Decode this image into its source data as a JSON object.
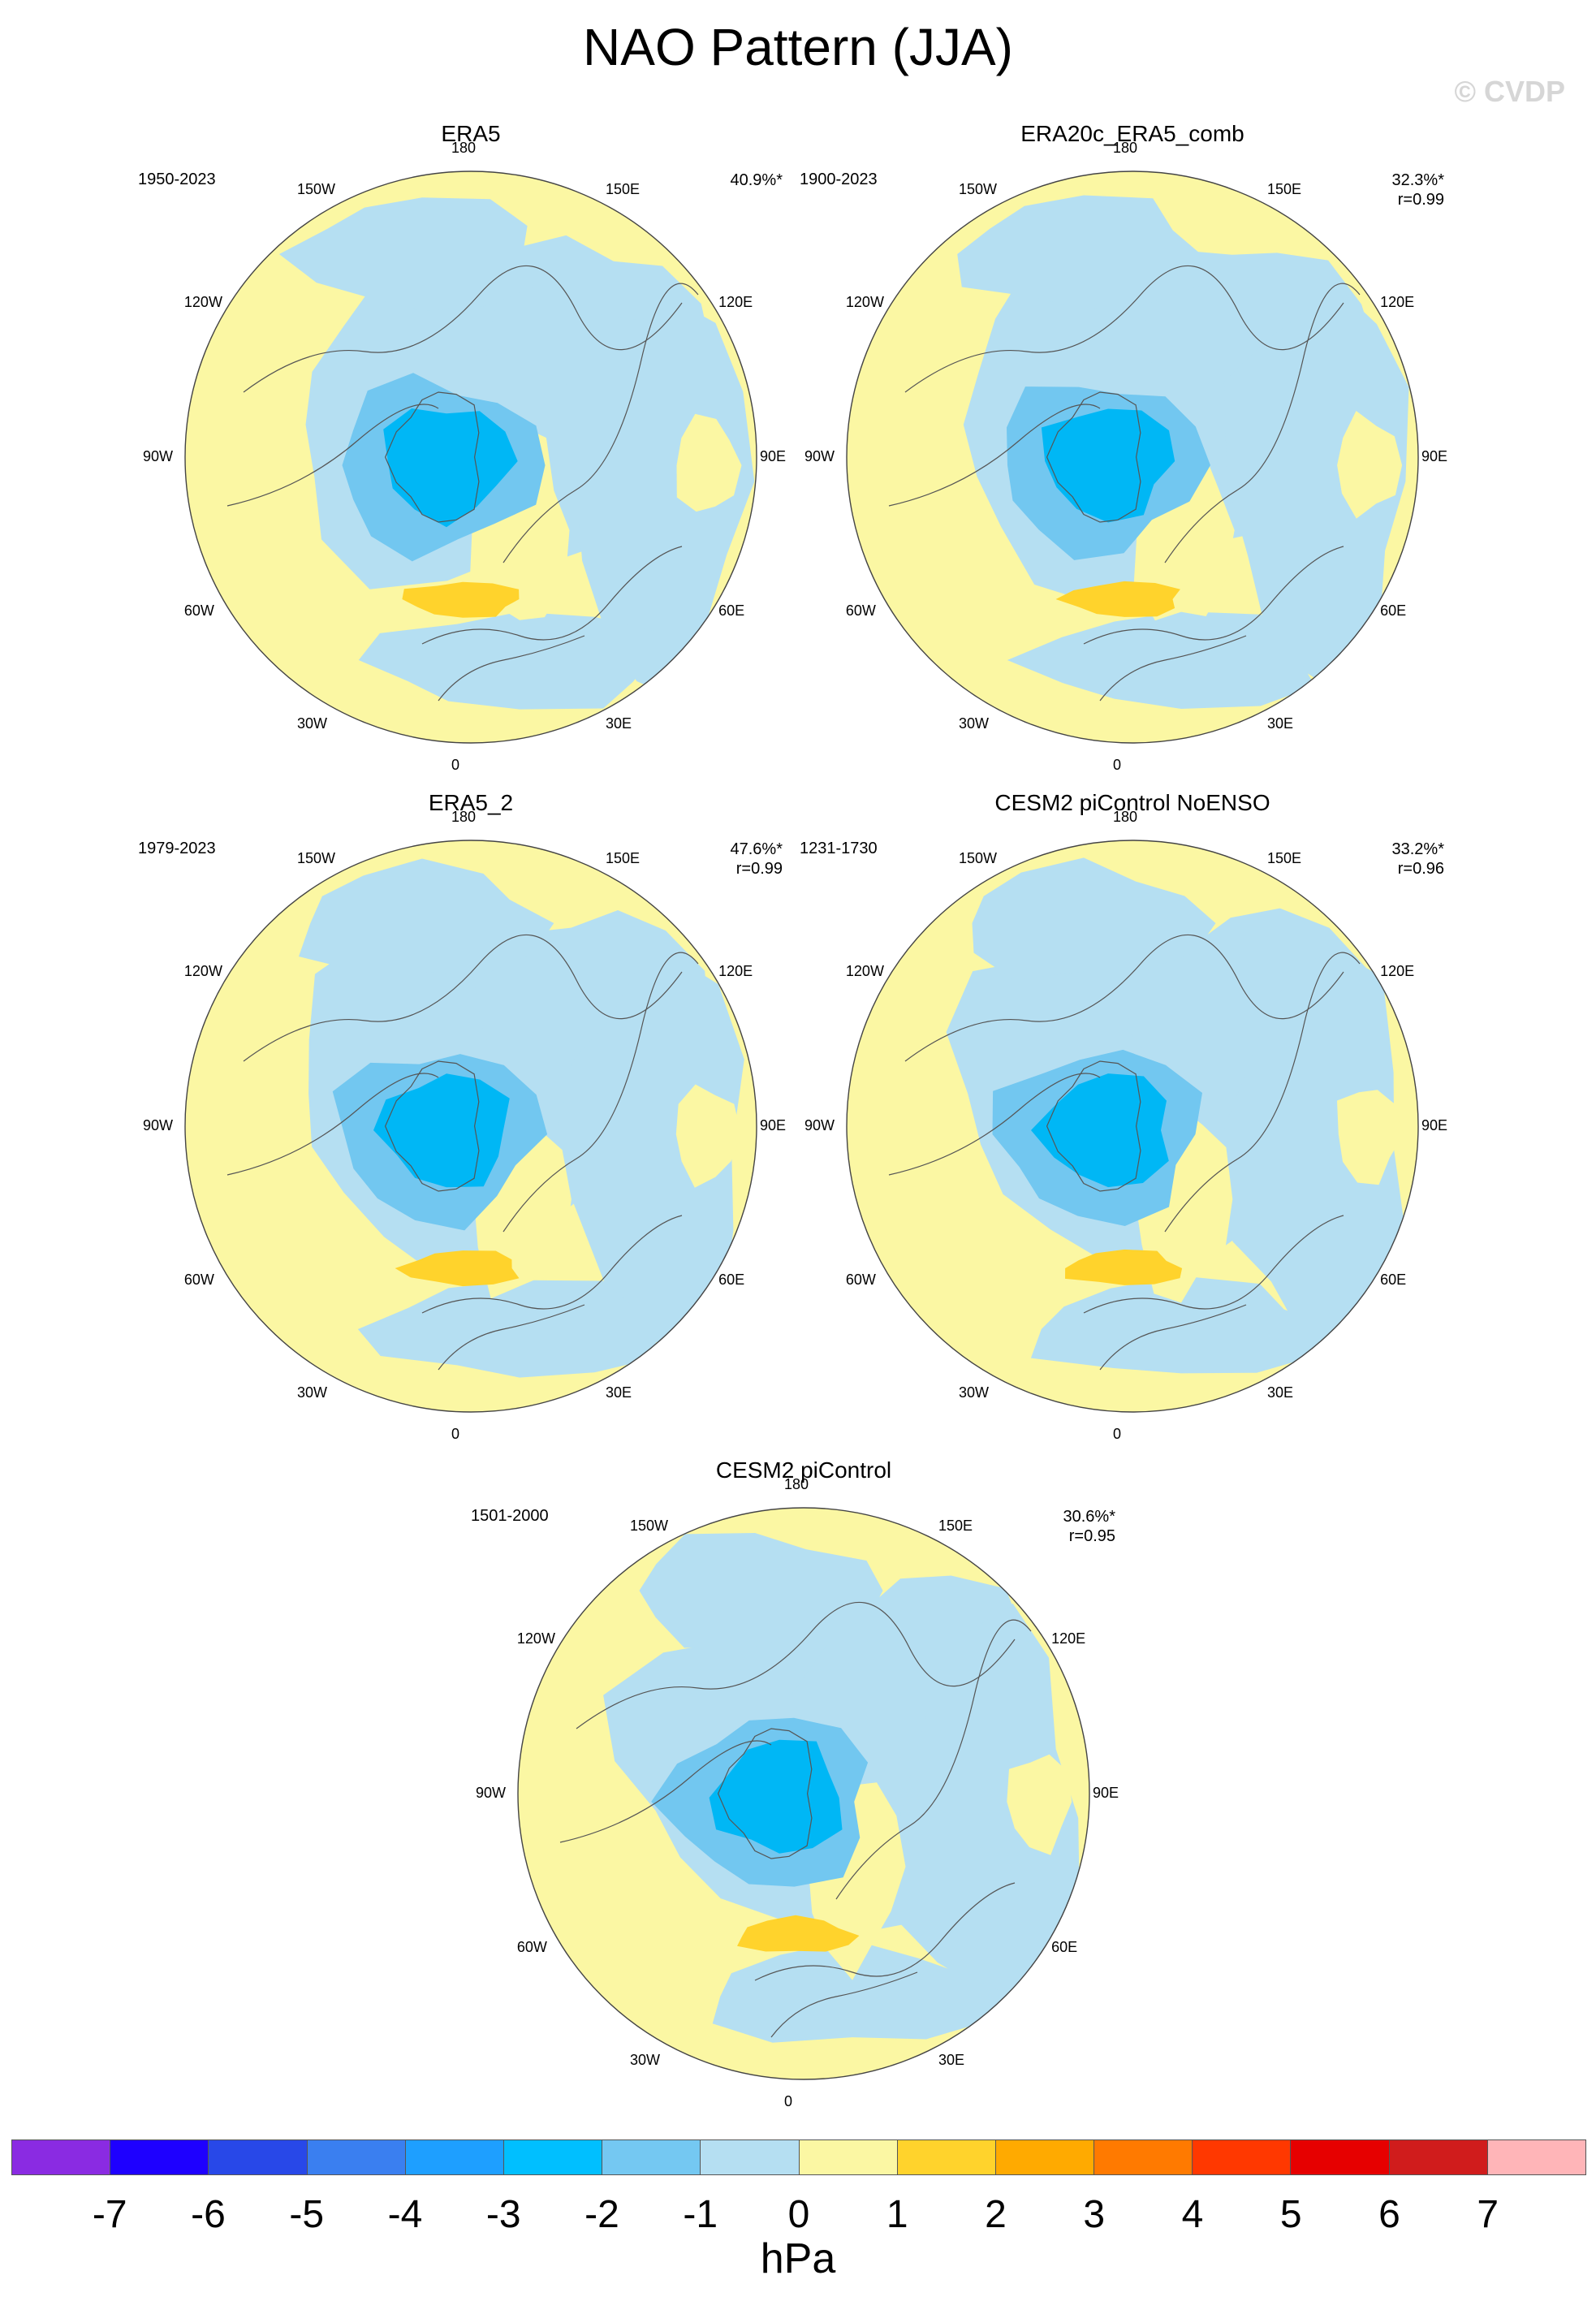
{
  "title": "NAO Pattern (JJA)",
  "copyright": "© CVDP",
  "colors": {
    "neg1": "#b5dff2",
    "neg2": "#72c7f0",
    "neg3": "#00b7f5",
    "pos0": "#fbf7a3",
    "pos1": "#ffd32c",
    "coast": "#555555"
  },
  "longitude_labels": {
    "top": "180",
    "bottom": "0",
    "l150": "150W",
    "r150": "150E",
    "l120": "120W",
    "r120": "120E",
    "l90": "90W",
    "r90": "90E",
    "l60": "60W",
    "r60": "60E",
    "l30": "30W",
    "r30": "30E"
  },
  "panels": [
    {
      "title": "ERA5",
      "period": "1950-2023",
      "pct": "40.9%*",
      "r": ""
    },
    {
      "title": "ERA20c_ERA5_comb",
      "period": "1900-2023",
      "pct": "32.3%*",
      "r": "r=0.99"
    },
    {
      "title": "ERA5_2",
      "period": "1979-2023",
      "pct": "47.6%*",
      "r": "r=0.99"
    },
    {
      "title": "CESM2 piControl NoENSO",
      "period": "1231-1730",
      "pct": "33.2%*",
      "r": "r=0.96"
    },
    {
      "title": "CESM2 piControl",
      "period": "1501-2000",
      "pct": "30.6%*",
      "r": "r=0.95"
    }
  ],
  "colorbar": {
    "units": "hPa",
    "colors": [
      "#8a2be2",
      "#1e00ff",
      "#2848e8",
      "#3a7ff0",
      "#1e9fff",
      "#00bfff",
      "#74c8f2",
      "#b5dff2",
      "#fbf7a3",
      "#ffd32c",
      "#ffaa00",
      "#ff7a00",
      "#ff3800",
      "#e60000",
      "#d01c1c",
      "#ffb5b8"
    ],
    "labels": [
      "-7",
      "-6",
      "-5",
      "-4",
      "-3",
      "-2",
      "-1",
      "0",
      "1",
      "2",
      "3",
      "4",
      "5",
      "6",
      "7"
    ]
  }
}
